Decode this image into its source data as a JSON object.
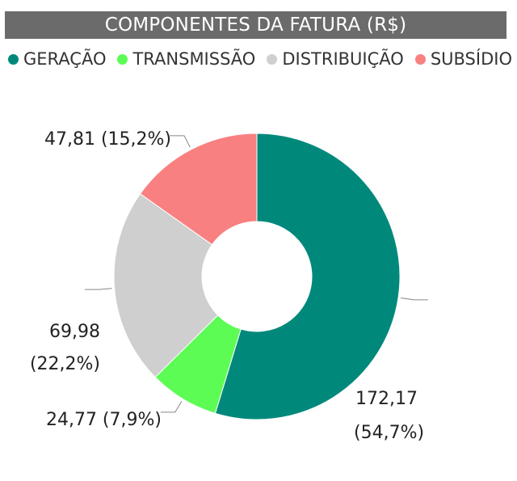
{
  "chart_data": {
    "type": "pie",
    "title": "COMPONENTES DA FATURA (R$)",
    "legend_position": "top-left",
    "categories": [
      "GERAÇÃO",
      "TRANSMISSÃO",
      "DISTRIBUIÇÃO",
      "SUBSÍDIO"
    ],
    "values": [
      172.17,
      24.77,
      69.98,
      47.81
    ],
    "percent": [
      54.7,
      7.9,
      22.2,
      15.2
    ],
    "colors": [
      "#00897b",
      "#5dfc55",
      "#cfcfcf",
      "#f98080"
    ],
    "value_labels": [
      "172,17",
      "24,77",
      "69,98",
      "47,81"
    ],
    "percent_labels": [
      "(54,7%)",
      "(7,9%)",
      "(22,2%)",
      "(15,2%)"
    ]
  }
}
